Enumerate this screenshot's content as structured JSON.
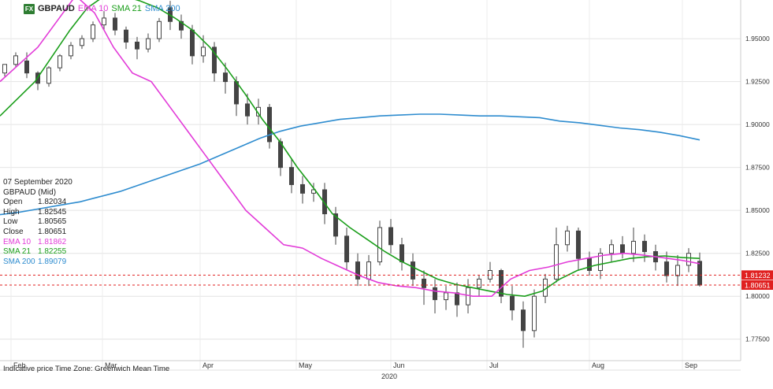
{
  "header": {
    "pair_code": "FX",
    "symbol": "GBPAUD",
    "legend": [
      {
        "label": "EMA 10",
        "color": "#e23bd8"
      },
      {
        "label": "SMA 21",
        "color": "#1a9e1a"
      },
      {
        "label": "SMA 200",
        "color": "#2e8ccf"
      }
    ]
  },
  "info_panel": {
    "date": "07 September 2020",
    "instrument": "GBPAUD (Mid)",
    "rows": [
      {
        "label": "Open",
        "value": "1.82034",
        "color": "#222222"
      },
      {
        "label": "High",
        "value": "1.82545",
        "color": "#222222"
      },
      {
        "label": "Low",
        "value": "1.80565",
        "color": "#222222"
      },
      {
        "label": "Close",
        "value": "1.80651",
        "color": "#222222"
      },
      {
        "label": "EMA 10",
        "value": "1.81862",
        "color": "#e23bd8"
      },
      {
        "label": "SMA 21",
        "value": "1.82255",
        "color": "#1a9e1a"
      },
      {
        "label": "SMA 200",
        "value": "1.89079",
        "color": "#2e8ccf"
      }
    ]
  },
  "footnote": "Indicative price    Time Zone: Greenwich Mean Time",
  "chart_data": {
    "type": "candlestick",
    "y_axis": {
      "min": 1.7625,
      "max": 1.9725,
      "ticks": [
        "1.95000",
        "1.92500",
        "1.90000",
        "1.87500",
        "1.85000",
        "1.82500",
        "1.80000",
        "1.77500"
      ],
      "tick_values": [
        1.95,
        1.925,
        1.9,
        1.875,
        1.85,
        1.825,
        1.8,
        1.775
      ]
    },
    "x_axis": {
      "months": [
        "Feb",
        "Mar",
        "Apr",
        "May",
        "Jun",
        "Jul",
        "Aug",
        "Sep"
      ],
      "year": "2020"
    },
    "price_markers": [
      {
        "label": "1.81232",
        "value": 1.81232,
        "color": "#e02020"
      },
      {
        "label": "1.80651",
        "value": 1.80651,
        "color": "#e02020"
      }
    ],
    "sma200": [
      1.8475,
      1.849,
      1.851,
      1.853,
      1.855,
      1.858,
      1.861,
      1.865,
      1.869,
      1.873,
      1.877,
      1.882,
      1.887,
      1.892,
      1.896,
      1.899,
      1.901,
      1.903,
      1.904,
      1.905,
      1.9055,
      1.906,
      1.906,
      1.9055,
      1.905,
      1.905,
      1.9045,
      1.904,
      1.902,
      1.901,
      1.8995,
      1.898,
      1.897,
      1.8955,
      1.8935,
      1.891
    ],
    "sma21": [
      1.905,
      1.915,
      1.925,
      1.94,
      1.955,
      1.968,
      1.975,
      1.975,
      1.972,
      1.968,
      1.962,
      1.955,
      1.945,
      1.932,
      1.918,
      1.903,
      1.89,
      1.875,
      1.862,
      1.848,
      1.84,
      1.833,
      1.826,
      1.82,
      1.815,
      1.81,
      1.807,
      1.805,
      1.803,
      1.801,
      1.8,
      1.803,
      1.81,
      1.815,
      1.818,
      1.82,
      1.822,
      1.823,
      1.8235,
      1.8225,
      1.822
    ],
    "ema10": [
      1.925,
      1.935,
      1.945,
      1.96,
      1.975,
      1.965,
      1.945,
      1.93,
      1.925,
      1.91,
      1.895,
      1.88,
      1.865,
      1.85,
      1.84,
      1.83,
      1.828,
      1.822,
      1.817,
      1.812,
      1.808,
      1.806,
      1.805,
      1.803,
      1.802,
      1.8,
      1.8,
      1.81,
      1.815,
      1.817,
      1.82,
      1.822,
      1.824,
      1.825,
      1.824,
      1.8225,
      1.821,
      1.819
    ],
    "candles": [
      [
        1.93,
        1.935,
        1.935,
        1.928
      ],
      [
        1.935,
        1.94,
        1.942,
        1.933
      ],
      [
        1.937,
        1.93,
        1.942,
        1.927
      ],
      [
        1.93,
        1.924,
        1.931,
        1.92
      ],
      [
        1.924,
        1.933,
        1.934,
        1.922
      ],
      [
        1.933,
        1.94,
        1.941,
        1.931
      ],
      [
        1.94,
        1.946,
        1.948,
        1.938
      ],
      [
        1.946,
        1.95,
        1.952,
        1.944
      ],
      [
        1.95,
        1.958,
        1.96,
        1.948
      ],
      [
        1.958,
        1.962,
        1.966,
        1.955
      ],
      [
        1.962,
        1.955,
        1.965,
        1.952
      ],
      [
        1.955,
        1.948,
        1.957,
        1.944
      ],
      [
        1.948,
        1.944,
        1.951,
        1.938
      ],
      [
        1.944,
        1.95,
        1.953,
        1.942
      ],
      [
        1.95,
        1.96,
        1.962,
        1.948
      ],
      [
        1.968,
        1.96,
        1.972,
        1.955
      ],
      [
        1.96,
        1.955,
        1.964,
        1.95
      ],
      [
        1.955,
        1.94,
        1.958,
        1.935
      ],
      [
        1.94,
        1.945,
        1.952,
        1.936
      ],
      [
        1.945,
        1.93,
        1.948,
        1.925
      ],
      [
        1.93,
        1.925,
        1.936,
        1.918
      ],
      [
        1.925,
        1.912,
        1.928,
        1.905
      ],
      [
        1.912,
        1.905,
        1.918,
        1.9
      ],
      [
        1.905,
        1.91,
        1.915,
        1.9
      ],
      [
        1.91,
        1.89,
        1.912,
        1.886
      ],
      [
        1.89,
        1.875,
        1.892,
        1.87
      ],
      [
        1.875,
        1.865,
        1.88,
        1.86
      ],
      [
        1.865,
        1.86,
        1.87,
        1.854
      ],
      [
        1.86,
        1.862,
        1.866,
        1.855
      ],
      [
        1.862,
        1.848,
        1.866,
        1.842
      ],
      [
        1.848,
        1.835,
        1.852,
        1.83
      ],
      [
        1.835,
        1.82,
        1.84,
        1.815
      ],
      [
        1.82,
        1.81,
        1.825,
        1.806
      ],
      [
        1.81,
        1.82,
        1.824,
        1.806
      ],
      [
        1.82,
        1.84,
        1.844,
        1.818
      ],
      [
        1.84,
        1.83,
        1.845,
        1.825
      ],
      [
        1.83,
        1.82,
        1.834,
        1.815
      ],
      [
        1.82,
        1.81,
        1.825,
        1.806
      ],
      [
        1.81,
        1.805,
        1.815,
        1.795
      ],
      [
        1.805,
        1.798,
        1.81,
        1.79
      ],
      [
        1.798,
        1.802,
        1.806,
        1.792
      ],
      [
        1.802,
        1.795,
        1.808,
        1.788
      ],
      [
        1.795,
        1.805,
        1.81,
        1.79
      ],
      [
        1.805,
        1.81,
        1.812,
        1.8
      ],
      [
        1.81,
        1.815,
        1.82,
        1.808
      ],
      [
        1.815,
        1.8,
        1.816,
        1.796
      ],
      [
        1.8,
        1.792,
        1.806,
        1.786
      ],
      [
        1.792,
        1.78,
        1.797,
        1.77
      ],
      [
        1.78,
        1.8,
        1.804,
        1.776
      ],
      [
        1.8,
        1.81,
        1.813,
        1.796
      ],
      [
        1.81,
        1.83,
        1.84,
        1.808
      ],
      [
        1.83,
        1.838,
        1.841,
        1.826
      ],
      [
        1.838,
        1.822,
        1.84,
        1.815
      ],
      [
        1.822,
        1.815,
        1.826,
        1.812
      ],
      [
        1.815,
        1.825,
        1.828,
        1.81
      ],
      [
        1.825,
        1.83,
        1.833,
        1.82
      ],
      [
        1.83,
        1.825,
        1.835,
        1.822
      ],
      [
        1.825,
        1.832,
        1.84,
        1.82
      ],
      [
        1.832,
        1.826,
        1.836,
        1.82
      ],
      [
        1.826,
        1.82,
        1.83,
        1.815
      ],
      [
        1.82,
        1.812,
        1.826,
        1.808
      ],
      [
        1.812,
        1.818,
        1.824,
        1.806
      ],
      [
        1.818,
        1.825,
        1.828,
        1.814
      ],
      [
        1.82034,
        1.80651,
        1.82545,
        1.80565
      ]
    ]
  }
}
